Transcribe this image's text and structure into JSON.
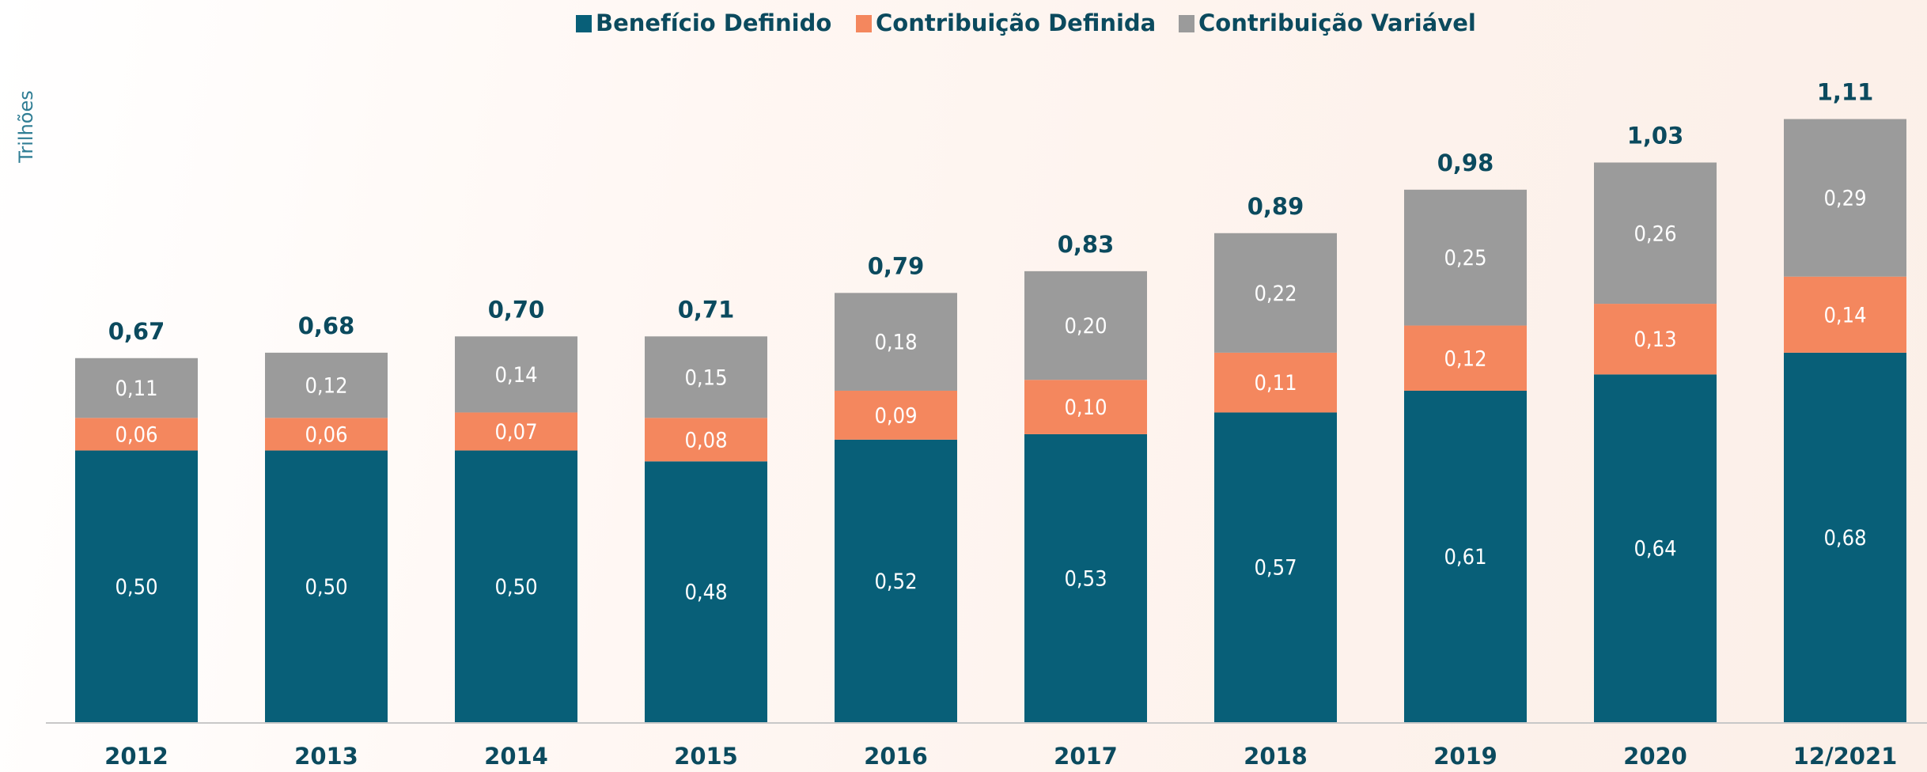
{
  "chart_data": {
    "type": "stacked_bar",
    "y_label": "Trilhões",
    "categories": [
      "2012",
      "2013",
      "2014",
      "2015",
      "2016",
      "2017",
      "2018",
      "2019",
      "2020",
      "12/2021"
    ],
    "series": [
      {
        "name": "Benefício Definido",
        "color": "#085f78",
        "values": [
          0.5,
          0.5,
          0.5,
          0.48,
          0.52,
          0.53,
          0.57,
          0.61,
          0.64,
          0.68
        ],
        "value_labels": [
          "0,50",
          "0,50",
          "0,50",
          "0,48",
          "0,52",
          "0,53",
          "0,57",
          "0,61",
          "0,64",
          "0,68"
        ]
      },
      {
        "name": "Contribuição Definida",
        "color": "#f4875e",
        "values": [
          0.06,
          0.06,
          0.07,
          0.08,
          0.09,
          0.1,
          0.11,
          0.12,
          0.13,
          0.14
        ],
        "value_labels": [
          "0,06",
          "0,06",
          "0,07",
          "0,08",
          "0,09",
          "0,10",
          "0,11",
          "0,12",
          "0,13",
          "0,14"
        ]
      },
      {
        "name": "Contribuição Variável",
        "color": "#9b9b9b",
        "values": [
          0.11,
          0.12,
          0.14,
          0.15,
          0.18,
          0.2,
          0.22,
          0.25,
          0.26,
          0.29
        ],
        "value_labels": [
          "0,11",
          "0,12",
          "0,14",
          "0,15",
          "0,18",
          "0,20",
          "0,22",
          "0,25",
          "0,26",
          "0,29"
        ]
      }
    ],
    "totals": [
      0.67,
      0.68,
      0.7,
      0.71,
      0.79,
      0.83,
      0.89,
      0.98,
      1.03,
      1.11
    ],
    "total_labels": [
      "0,67",
      "0,68",
      "0,70",
      "0,71",
      "0,79",
      "0,83",
      "0,89",
      "0,98",
      "1,03",
      "1,11"
    ],
    "ylim": [
      0,
      1.3
    ],
    "legend": "top"
  }
}
